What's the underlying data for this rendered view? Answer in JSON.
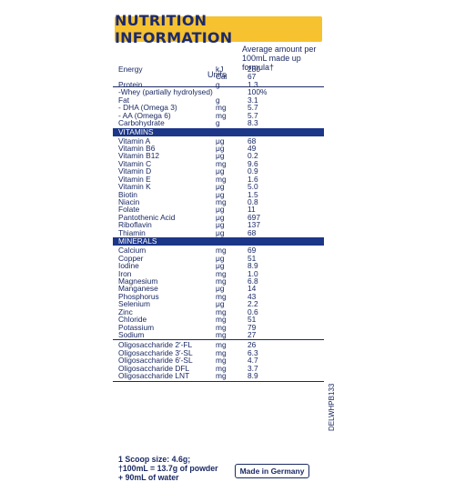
{
  "title": "NUTRITION INFORMATION",
  "header": {
    "units": "Units",
    "average_line1": "Average amount per",
    "average_line2": "100mL made up formula†"
  },
  "rows_main": [
    {
      "name": "Energy",
      "unit": "kJ",
      "value": "280"
    },
    {
      "name": "",
      "unit": "Cal",
      "value": "67"
    },
    {
      "name": "Protein",
      "unit": "g",
      "value": "1.3"
    },
    {
      "name": " -Whey (partially hydrolysed)",
      "unit": "",
      "value": "100%"
    },
    {
      "name": "Fat",
      "unit": "g",
      "value": "3.1"
    },
    {
      "name": " - DHA (Omega 3)",
      "unit": "mg",
      "value": "5.7"
    },
    {
      "name": " - AA (Omega 6)",
      "unit": "mg",
      "value": "5.7"
    },
    {
      "name": "Carbohydrate",
      "unit": "g",
      "value": "8.3"
    }
  ],
  "vitamins_label": "VITAMINS",
  "rows_vitamins": [
    {
      "name": "Vitamin A",
      "unit": "μg",
      "value": "68"
    },
    {
      "name": "Vitamin B6",
      "unit": "μg",
      "value": "49"
    },
    {
      "name": "Vitamin B12",
      "unit": "μg",
      "value": "0.2"
    },
    {
      "name": "Vitamin C",
      "unit": "mg",
      "value": "9.6"
    },
    {
      "name": "Vitamin D",
      "unit": "μg",
      "value": "0.9"
    },
    {
      "name": "Vitamin E",
      "unit": "mg",
      "value": "1.6"
    },
    {
      "name": "Vitamin K",
      "unit": "μg",
      "value": "5.0"
    },
    {
      "name": "Biotin",
      "unit": "μg",
      "value": "1.5"
    },
    {
      "name": "Niacin",
      "unit": "mg",
      "value": "0.8"
    },
    {
      "name": "Folate",
      "unit": "μg",
      "value": "11"
    },
    {
      "name": "Pantothenic Acid",
      "unit": "μg",
      "value": "697"
    },
    {
      "name": "Riboflavin",
      "unit": "μg",
      "value": "137"
    },
    {
      "name": "Thiamin",
      "unit": "μg",
      "value": "68"
    }
  ],
  "minerals_label": "MINERALS",
  "rows_minerals": [
    {
      "name": "Calcium",
      "unit": "mg",
      "value": "69"
    },
    {
      "name": "Copper",
      "unit": "μg",
      "value": "51"
    },
    {
      "name": "Iodine",
      "unit": "μg",
      "value": "8.9"
    },
    {
      "name": "Iron",
      "unit": "mg",
      "value": "1.0"
    },
    {
      "name": "Magnesium",
      "unit": "mg",
      "value": "6.8"
    },
    {
      "name": "Manganese",
      "unit": "μg",
      "value": "14"
    },
    {
      "name": "Phosphorus",
      "unit": "mg",
      "value": "43"
    },
    {
      "name": "Selenium",
      "unit": "μg",
      "value": "2.2"
    },
    {
      "name": "Zinc",
      "unit": "mg",
      "value": "0.6"
    },
    {
      "name": "Chloride",
      "unit": "mg",
      "value": "51"
    },
    {
      "name": "Potassium",
      "unit": "mg",
      "value": "79"
    },
    {
      "name": "Sodium",
      "unit": "mg",
      "value": "27"
    }
  ],
  "rows_oligo": [
    {
      "name": "Oligosaccharide 2′-FL",
      "unit": "mg",
      "value": "26"
    },
    {
      "name": "Oligosaccharide 3′-SL",
      "unit": "mg",
      "value": "6.3"
    },
    {
      "name": "Oligosaccharide 6′-SL",
      "unit": "mg",
      "value": "4.7"
    },
    {
      "name": "Oligosaccharide DFL",
      "unit": "mg",
      "value": "3.7"
    },
    {
      "name": "Oligosaccharide LNT",
      "unit": "mg",
      "value": "8.9"
    }
  ],
  "footer": {
    "line1": "1 Scoop size: 4.6g;",
    "line2": "†100mL = 13.7g of powder",
    "line3": "+ 90mL of water"
  },
  "made_in": "Made in Germany",
  "code": "DELWHPB133"
}
